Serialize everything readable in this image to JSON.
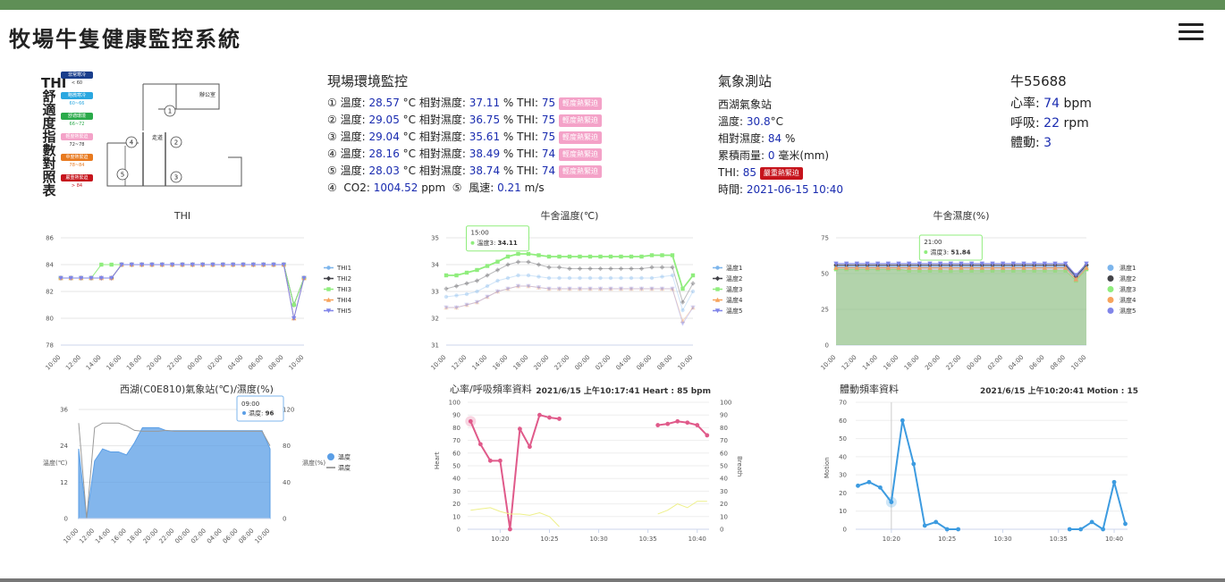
{
  "app": {
    "title": "牧場牛隻健康監控系統"
  },
  "thi_legend": {
    "title": "THI舒適度指數對照表",
    "items": [
      {
        "label": "非常寒冷",
        "range": "< 60",
        "color": "#1a3e8c"
      },
      {
        "label": "略微寒冷",
        "range": "60~66",
        "color": "#2aa7e0"
      },
      {
        "label": "舒適環境",
        "range": "66~72",
        "color": "#2aaa4a"
      },
      {
        "label": "輕度熱緊迫",
        "range": "72~78",
        "color": "#f4a2c8"
      },
      {
        "label": "中度熱緊迫",
        "range": "78~84",
        "color": "#e87a1f"
      },
      {
        "label": "嚴重熱緊迫",
        "range": "> 84",
        "color": "#c6141c"
      }
    ]
  },
  "floorplan": {
    "office": "辦公室",
    "corridor": "走道",
    "points": [
      "1",
      "2",
      "3",
      "4",
      "5"
    ]
  },
  "env": {
    "title": "現場環境監控",
    "rows": [
      {
        "n": "①",
        "temp": "28.57",
        "hum": "37.11",
        "thi": "75",
        "badge": "輕度熱緊迫"
      },
      {
        "n": "②",
        "temp": "29.05",
        "hum": "36.75",
        "thi": "75",
        "badge": "輕度熱緊迫"
      },
      {
        "n": "③",
        "temp": "29.04",
        "hum": "35.61",
        "thi": "75",
        "badge": "輕度熱緊迫"
      },
      {
        "n": "④",
        "temp": "28.16",
        "hum": "38.49",
        "thi": "74",
        "badge": "輕度熱緊迫"
      },
      {
        "n": "⑤",
        "temp": "28.03",
        "hum": "38.74",
        "thi": "74",
        "badge": "輕度熱緊迫"
      }
    ],
    "temp_label": "溫度:",
    "temp_unit": "°C",
    "hum_label": "相對濕度:",
    "hum_unit": "%",
    "thi_label": "THI:",
    "extra": {
      "n1": "④",
      "co2_label": "CO2:",
      "co2": "1004.52",
      "co2_unit": "ppm",
      "n2": "⑤",
      "wind_label": "風速:",
      "wind": "0.21",
      "wind_unit": "m/s"
    }
  },
  "weather": {
    "title": "氣象測站",
    "station": "西湖氣象站",
    "temp_label": "溫度:",
    "temp": "30.8",
    "temp_unit": "°C",
    "hum_label": "相對濕度:",
    "hum": "84",
    "hum_unit": "%",
    "rain_label": "累積雨量:",
    "rain": "0",
    "rain_unit": "毫米(mm)",
    "thi_label": "THI:",
    "thi": "85",
    "thi_badge": "嚴重熱緊迫",
    "time_label": "時間:",
    "time": "2021-06-15 10:40"
  },
  "cow": {
    "title": "牛55688",
    "hr_label": "心率:",
    "hr": "74",
    "hr_unit": "bpm",
    "br_label": "呼吸:",
    "br": "22",
    "br_unit": "rpm",
    "mv_label": "體動:",
    "mv": "3"
  },
  "chart_data": [
    {
      "id": "thi",
      "type": "line",
      "title": "THI",
      "categories": [
        "10:00",
        "11:00",
        "12:00",
        "13:00",
        "14:00",
        "15:00",
        "16:00",
        "17:00",
        "18:00",
        "19:00",
        "20:00",
        "21:00",
        "22:00",
        "23:00",
        "00:00",
        "01:00",
        "02:00",
        "03:00",
        "04:00",
        "05:00",
        "06:00",
        "07:00",
        "08:00",
        "09:00",
        "10:00"
      ],
      "xticks": [
        "10:00",
        "12:00",
        "14:00",
        "16:00",
        "18:00",
        "20:00",
        "22:00",
        "00:00",
        "02:00",
        "04:00",
        "06:00",
        "08:00",
        "10:00"
      ],
      "ylim": [
        78,
        86
      ],
      "yticks": [
        78,
        80,
        82,
        84,
        86
      ],
      "series": [
        {
          "name": "THI1",
          "color": "#7cb5ec",
          "values": [
            83,
            83,
            83,
            83,
            83,
            83,
            84,
            84,
            84,
            84,
            84,
            84,
            84,
            84,
            84,
            84,
            84,
            84,
            84,
            84,
            84,
            84,
            84,
            81,
            83
          ]
        },
        {
          "name": "THI2",
          "color": "#434348",
          "values": [
            83,
            83,
            83,
            83,
            83,
            83,
            84,
            84,
            84,
            84,
            84,
            84,
            84,
            84,
            84,
            84,
            84,
            84,
            84,
            84,
            84,
            84,
            84,
            81,
            83
          ]
        },
        {
          "name": "THI3",
          "color": "#90ed7d",
          "values": [
            83,
            83,
            83,
            83,
            84,
            84,
            84,
            84,
            84,
            84,
            84,
            84,
            84,
            84,
            84,
            84,
            84,
            84,
            84,
            84,
            84,
            84,
            84,
            81,
            83
          ]
        },
        {
          "name": "THI4",
          "color": "#f7a35c",
          "values": [
            83,
            83,
            83,
            83,
            83,
            83,
            84,
            84,
            84,
            84,
            84,
            84,
            84,
            84,
            84,
            84,
            84,
            84,
            84,
            84,
            84,
            84,
            84,
            80,
            83
          ]
        },
        {
          "name": "THI5",
          "color": "#8085e9",
          "values": [
            83,
            83,
            83,
            83,
            83,
            83,
            84,
            84,
            84,
            84,
            84,
            84,
            84,
            84,
            84,
            84,
            84,
            84,
            84,
            84,
            84,
            84,
            84,
            80,
            83
          ]
        }
      ]
    },
    {
      "id": "temp",
      "type": "line",
      "title": "牛舍溫度(℃)",
      "categories": [
        "10:00",
        "11:00",
        "12:00",
        "13:00",
        "14:00",
        "15:00",
        "16:00",
        "17:00",
        "18:00",
        "19:00",
        "20:00",
        "21:00",
        "22:00",
        "23:00",
        "00:00",
        "01:00",
        "02:00",
        "03:00",
        "04:00",
        "05:00",
        "06:00",
        "07:00",
        "08:00",
        "09:00",
        "10:00"
      ],
      "xticks": [
        "10:00",
        "12:00",
        "14:00",
        "16:00",
        "18:00",
        "20:00",
        "22:00",
        "00:00",
        "02:00",
        "04:00",
        "06:00",
        "08:00",
        "10:00"
      ],
      "ylim": [
        31,
        35
      ],
      "yticks": [
        31,
        32,
        33,
        34,
        35
      ],
      "tooltip": {
        "time": "15:00",
        "series": "溫度3",
        "value": "34.11",
        "index": 5
      },
      "series": [
        {
          "name": "溫度1",
          "color": "#7cb5ec",
          "values": [
            32.8,
            32.85,
            32.9,
            33,
            33.2,
            33.4,
            33.5,
            33.6,
            33.6,
            33.55,
            33.5,
            33.5,
            33.5,
            33.5,
            33.5,
            33.5,
            33.5,
            33.5,
            33.5,
            33.5,
            33.5,
            33.55,
            33.6,
            32.3,
            33.0
          ]
        },
        {
          "name": "溫度2",
          "color": "#434348",
          "values": [
            33.1,
            33.2,
            33.3,
            33.4,
            33.6,
            33.8,
            34.0,
            34.1,
            34.1,
            34.0,
            33.9,
            33.9,
            33.85,
            33.85,
            33.85,
            33.85,
            33.85,
            33.85,
            33.85,
            33.85,
            33.9,
            33.9,
            33.9,
            32.6,
            33.3
          ]
        },
        {
          "name": "溫度3",
          "color": "#90ed7d",
          "values": [
            33.6,
            33.6,
            33.7,
            33.8,
            33.95,
            34.11,
            34.3,
            34.4,
            34.4,
            34.35,
            34.3,
            34.3,
            34.3,
            34.3,
            34.3,
            34.3,
            34.3,
            34.3,
            34.3,
            34.3,
            34.35,
            34.35,
            34.35,
            33.1,
            33.6
          ]
        },
        {
          "name": "溫度4",
          "color": "#f7a35c",
          "values": [
            32.4,
            32.4,
            32.5,
            32.6,
            32.8,
            33.0,
            33.1,
            33.2,
            33.2,
            33.15,
            33.1,
            33.1,
            33.1,
            33.1,
            33.1,
            33.1,
            33.1,
            33.1,
            33.1,
            33.1,
            33.1,
            33.1,
            33.1,
            31.9,
            32.4
          ]
        },
        {
          "name": "溫度5",
          "color": "#8085e9",
          "values": [
            32.4,
            32.4,
            32.5,
            32.6,
            32.8,
            33.0,
            33.1,
            33.2,
            33.2,
            33.15,
            33.1,
            33.1,
            33.1,
            33.1,
            33.1,
            33.1,
            33.1,
            33.1,
            33.1,
            33.1,
            33.1,
            33.1,
            33.1,
            31.8,
            32.4
          ]
        }
      ]
    },
    {
      "id": "humid",
      "type": "area",
      "title": "牛舍濕度(%)",
      "categories": [
        "10:00",
        "11:00",
        "12:00",
        "13:00",
        "14:00",
        "15:00",
        "16:00",
        "17:00",
        "18:00",
        "19:00",
        "20:00",
        "21:00",
        "22:00",
        "23:00",
        "00:00",
        "01:00",
        "02:00",
        "03:00",
        "04:00",
        "05:00",
        "06:00",
        "07:00",
        "08:00",
        "09:00",
        "10:00"
      ],
      "xticks": [
        "10:00",
        "12:00",
        "14:00",
        "16:00",
        "18:00",
        "20:00",
        "22:00",
        "00:00",
        "02:00",
        "04:00",
        "06:00",
        "08:00",
        "10:00"
      ],
      "ylim": [
        0,
        75
      ],
      "yticks": [
        0,
        25,
        50,
        75
      ],
      "tooltip": {
        "time": "21:00",
        "series": "濕度3",
        "value": "51.84",
        "index": 11
      },
      "series": [
        {
          "name": "濕度1",
          "color": "#7cb5ec",
          "values": [
            55,
            55,
            55,
            55,
            55,
            55,
            55,
            55,
            55,
            55,
            55,
            55,
            55,
            55,
            55,
            55,
            55,
            55,
            55,
            55,
            55,
            55,
            55,
            47,
            55
          ]
        },
        {
          "name": "濕度2",
          "color": "#434348",
          "values": [
            56,
            56,
            56,
            56,
            56,
            56,
            56,
            56,
            56,
            56,
            56,
            56,
            56,
            56,
            56,
            56,
            56,
            56,
            56,
            56,
            56,
            56,
            56,
            48,
            56
          ]
        },
        {
          "name": "濕度3",
          "color": "#90ed7d",
          "values": [
            53,
            53,
            53,
            53,
            53,
            53,
            53,
            52,
            52,
            52,
            52,
            51.84,
            52,
            52,
            52,
            52,
            52,
            52,
            52,
            52,
            52,
            52,
            52,
            45,
            53
          ]
        },
        {
          "name": "濕度4",
          "color": "#f7a35c",
          "values": [
            54,
            54,
            54,
            54,
            54,
            54,
            54,
            54,
            54,
            54,
            54,
            54,
            54,
            54,
            54,
            54,
            54,
            54,
            54,
            54,
            54,
            54,
            54,
            46,
            54
          ]
        },
        {
          "name": "濕度5",
          "color": "#8085e9",
          "values": [
            57,
            57,
            57,
            57,
            57,
            57,
            57,
            57,
            57,
            57,
            57,
            57,
            57,
            57,
            57,
            57,
            57,
            57,
            57,
            57,
            57,
            57,
            57,
            49,
            57
          ]
        }
      ]
    },
    {
      "id": "weather",
      "type": "area",
      "title": "西湖(C0E810)氣象站(℃)/濕度(%)",
      "categories": [
        "10:00",
        "11:00",
        "12:00",
        "13:00",
        "14:00",
        "15:00",
        "16:00",
        "17:00",
        "18:00",
        "19:00",
        "20:00",
        "21:00",
        "22:00",
        "23:00",
        "00:00",
        "01:00",
        "02:00",
        "03:00",
        "04:00",
        "05:00",
        "06:00",
        "07:00",
        "08:00",
        "09:00",
        "10:00"
      ],
      "xticks": [
        "10:00",
        "12:00",
        "14:00",
        "16:00",
        "18:00",
        "20:00",
        "22:00",
        "00:00",
        "02:00",
        "04:00",
        "06:00",
        "08:00",
        "10:00"
      ],
      "ylim_left": [
        0,
        36
      ],
      "yticks_left": [
        0,
        12,
        24,
        36
      ],
      "ylim_right": [
        0,
        120
      ],
      "yticks_right": [
        0,
        40,
        80,
        120
      ],
      "ylabel_left": "溫度(℃)",
      "ylabel_right": "濕度(%)",
      "tooltip": {
        "time": "09:00",
        "series": "濕度",
        "value": "96",
        "index": 23
      },
      "series": [
        {
          "name": "溫度",
          "color": "#5a9ee6",
          "axis": "left",
          "values": [
            23,
            0,
            19,
            23,
            22,
            22,
            21,
            25,
            30,
            30,
            30,
            29,
            29,
            29,
            29,
            29,
            29,
            29,
            29,
            29,
            29,
            29,
            29,
            29,
            23
          ]
        },
        {
          "name": "濕度",
          "color": "#9a9a9a",
          "axis": "right",
          "values": [
            105,
            0,
            100,
            105,
            105,
            105,
            102,
            97,
            96,
            96,
            96,
            97,
            96,
            96,
            96,
            96,
            96,
            96,
            96,
            96,
            96,
            96,
            96,
            96,
            80
          ]
        }
      ]
    },
    {
      "id": "heart",
      "type": "line",
      "title": "心率/呼吸頻率資料",
      "subtitle": "2021/6/15 上午10:17:41 Heart : 85 bpm",
      "x": [
        "10:17",
        "10:18",
        "10:19",
        "10:20",
        "10:21",
        "10:22",
        "10:23",
        "10:24",
        "10:25",
        "10:26",
        "10:36",
        "10:37",
        "10:38",
        "10:39",
        "10:40",
        "10:41"
      ],
      "xticks": [
        "10:20",
        "10:25",
        "10:30",
        "10:35",
        "10:40"
      ],
      "ylim": [
        0,
        100
      ],
      "yticks": [
        0,
        10,
        20,
        30,
        40,
        50,
        60,
        70,
        80,
        90,
        100
      ],
      "ylabel_left": "Heart",
      "ylabel_right": "Breath",
      "series": [
        {
          "name": "Heart",
          "color": "#e05a8a",
          "values": [
            85,
            67,
            54,
            54,
            0,
            79,
            65,
            90,
            88,
            87,
            82,
            83,
            85,
            84,
            82,
            74
          ]
        },
        {
          "name": "Breath",
          "color": "#eef08a",
          "values": [
            15,
            16,
            17,
            14,
            12,
            12,
            11,
            13,
            10,
            2,
            12,
            15,
            20,
            17,
            22,
            22
          ]
        }
      ]
    },
    {
      "id": "motion",
      "type": "line",
      "title": "體動頻率資料",
      "subtitle": "2021/6/15 上午10:20:41 Motion : 15",
      "x": [
        "10:17",
        "10:18",
        "10:19",
        "10:20",
        "10:21",
        "10:22",
        "10:23",
        "10:24",
        "10:25",
        "10:26",
        "10:36",
        "10:37",
        "10:38",
        "10:39",
        "10:40",
        "10:41"
      ],
      "xticks": [
        "10:20",
        "10:25",
        "10:30",
        "10:35",
        "10:40"
      ],
      "ylim": [
        0,
        70
      ],
      "yticks": [
        0,
        10,
        20,
        30,
        40,
        50,
        60,
        70
      ],
      "ylabel_left": "Motion",
      "series": [
        {
          "name": "Motion",
          "color": "#3d9be0",
          "values": [
            24,
            26,
            23,
            15,
            60,
            36,
            2,
            4,
            0,
            0,
            0,
            0,
            4,
            0,
            26,
            3
          ]
        }
      ]
    }
  ]
}
